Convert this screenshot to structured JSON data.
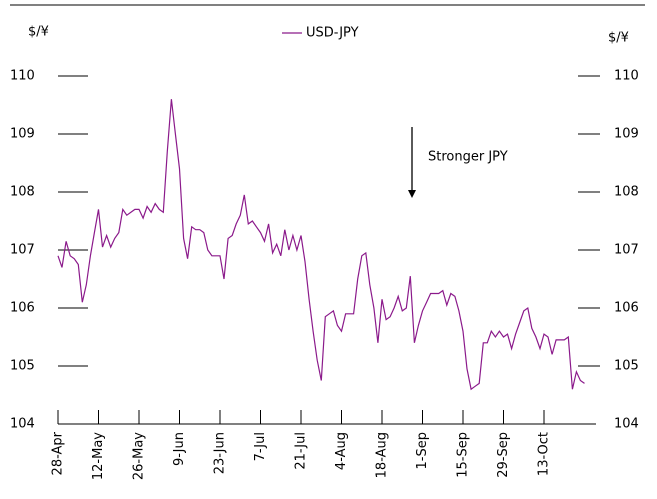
{
  "chart_data": {
    "type": "line",
    "y_label": "$/¥",
    "y2_label": "$/¥",
    "annotation": "Stronger JPY",
    "categories": [
      "28-Apr",
      null,
      null,
      null,
      null,
      null,
      null,
      null,
      null,
      null,
      "12-May",
      null,
      null,
      null,
      null,
      null,
      null,
      null,
      null,
      null,
      "26-May",
      null,
      null,
      null,
      null,
      null,
      null,
      null,
      null,
      null,
      "9-Jun",
      null,
      null,
      null,
      null,
      null,
      null,
      null,
      null,
      null,
      "23-Jun",
      null,
      null,
      null,
      null,
      null,
      null,
      null,
      null,
      null,
      "7-Jul",
      null,
      null,
      null,
      null,
      null,
      null,
      null,
      null,
      null,
      "21-Jul",
      null,
      null,
      null,
      null,
      null,
      null,
      null,
      null,
      null,
      "4-Aug",
      null,
      null,
      null,
      null,
      null,
      null,
      null,
      null,
      null,
      "18-Aug",
      null,
      null,
      null,
      null,
      null,
      null,
      null,
      null,
      null,
      "1-Sep",
      null,
      null,
      null,
      null,
      null,
      null,
      null,
      null,
      null,
      "15-Sep",
      null,
      null,
      null,
      null,
      null,
      null,
      null,
      null,
      null,
      "29-Sep",
      null,
      null,
      null,
      null,
      null,
      null,
      null,
      null,
      null,
      "13-Oct",
      null,
      null,
      null,
      null,
      null,
      null,
      null,
      null,
      null,
      null
    ],
    "series": [
      {
        "name": "USD-JPY",
        "color": "#8b1a8b",
        "values": [
          106.9,
          106.7,
          107.15,
          106.9,
          106.85,
          106.75,
          106.1,
          106.4,
          106.9,
          107.3,
          107.7,
          107.05,
          107.25,
          107.05,
          107.2,
          107.3,
          107.7,
          107.6,
          107.65,
          107.7,
          107.7,
          107.55,
          107.75,
          107.65,
          107.8,
          107.7,
          107.65,
          108.7,
          109.6,
          109.0,
          108.4,
          107.2,
          106.85,
          107.4,
          107.35,
          107.35,
          107.3,
          107.0,
          106.9,
          106.9,
          106.9,
          106.5,
          107.2,
          107.25,
          107.45,
          107.6,
          107.95,
          107.45,
          107.5,
          107.4,
          107.3,
          107.15,
          107.45,
          106.95,
          107.1,
          106.9,
          107.35,
          107.0,
          107.25,
          107.0,
          107.25,
          106.8,
          106.15,
          105.6,
          105.1,
          104.75,
          105.85,
          105.9,
          105.95,
          105.7,
          105.6,
          105.9,
          105.9,
          105.9,
          106.5,
          106.9,
          106.95,
          106.4,
          106.0,
          105.4,
          106.15,
          105.8,
          105.85,
          106.0,
          106.2,
          105.95,
          106.0,
          106.55,
          105.4,
          105.7,
          105.95,
          106.1,
          106.25,
          106.25,
          106.25,
          106.3,
          106.05,
          106.25,
          106.2,
          105.95,
          105.6,
          104.95,
          104.6,
          104.65,
          104.7,
          105.4,
          105.4,
          105.6,
          105.5,
          105.6,
          105.5,
          105.55,
          105.3,
          105.55,
          105.75,
          105.95,
          106.0,
          105.65,
          105.5,
          105.3,
          105.55,
          105.5,
          105.2,
          105.45,
          105.45,
          105.45,
          105.5,
          104.6,
          104.9,
          104.75,
          104.7
        ]
      }
    ],
    "ylim": [
      104,
      110
    ],
    "yticks": [
      104,
      105,
      106,
      107,
      108,
      109,
      110
    ],
    "y2lim": [
      104,
      110
    ],
    "y2ticks": [
      104,
      105,
      106,
      107,
      108,
      109,
      110
    ],
    "legend": "top"
  }
}
